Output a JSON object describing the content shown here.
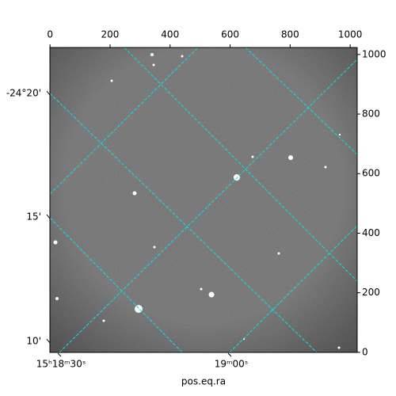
{
  "chart_data": {
    "type": "image",
    "xlabel": "pos.eq.ra",
    "xlim": [
      -0.5,
      1023.5
    ],
    "xticks": [
      0,
      200,
      400,
      600,
      800,
      1000
    ],
    "ylim": [
      -0.5,
      1023.5
    ],
    "yticks": [
      0,
      200,
      400,
      600,
      800,
      1000
    ],
    "ra_labels": [
      "15ʰ18ᵐ30ˢ",
      "19ᵐ00ˢ"
    ],
    "dec_labels": [
      "-24°20'",
      "15'",
      "10'"
    ],
    "grid": true,
    "grid_color": "#00e5e5"
  }
}
